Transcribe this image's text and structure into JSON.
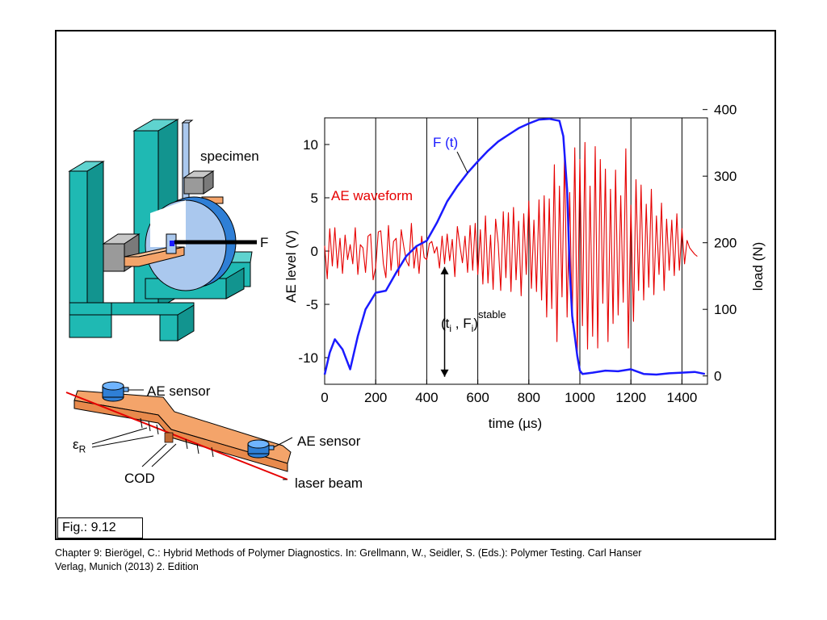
{
  "figure_label": "Fig.: 9.12",
  "caption_line1": "Chapter 9: Bierögel, C.: Hybrid Methods of Polymer Diagnostics. In: Grellmann, W., Seidler, S. (Eds.): Polymer Testing. Carl Hanser",
  "caption_line2": "Verlag, Munich (2013) 2. Edition",
  "rig": {
    "specimen": "specimen",
    "force": "F"
  },
  "beam": {
    "ae_sensor_left": "AE sensor",
    "ae_sensor_right": "AE sensor",
    "strain": "ε",
    "strain_sub": "R",
    "cod": "COD",
    "laser": "laser beam"
  },
  "chart_data": {
    "type": "line",
    "xlabel": "time (µs)",
    "ylabel": "AE level (V)",
    "y2label": "load (N)",
    "xlim": [
      0,
      1500
    ],
    "ylim": [
      -12.5,
      12.5
    ],
    "y2lim": [
      -12.5,
      387.5
    ],
    "xticks": [
      "0",
      "200",
      "400",
      "600",
      "800",
      "1000",
      "1200",
      "1400"
    ],
    "yticks": [
      "-10",
      "-5",
      "0",
      "5",
      "10"
    ],
    "y2ticks": [
      "0",
      "100",
      "200",
      "300",
      "400"
    ],
    "vertical_gridlines": [
      200,
      400,
      600,
      800,
      1000,
      1200,
      1400
    ],
    "series": [
      {
        "name": "F (t)",
        "axis": "right",
        "color": "#1a1aff",
        "x": [
          0,
          20,
          40,
          70,
          100,
          130,
          160,
          200,
          240,
          280,
          320,
          360,
          400,
          440,
          480,
          520,
          560,
          600,
          640,
          680,
          720,
          760,
          800,
          840,
          880,
          920,
          935,
          950,
          960,
          970,
          980,
          990,
          1000,
          1010,
          1050,
          1100,
          1150,
          1200,
          1250,
          1300,
          1350,
          1400,
          1450,
          1490
        ],
        "values": [
          2,
          35,
          55,
          40,
          10,
          60,
          100,
          125,
          128,
          155,
          180,
          195,
          203,
          230,
          262,
          285,
          305,
          322,
          338,
          352,
          362,
          372,
          379,
          385,
          386,
          383,
          360,
          280,
          160,
          90,
          60,
          30,
          8,
          3,
          5,
          8,
          7,
          10,
          3,
          2,
          4,
          5,
          6,
          3
        ]
      },
      {
        "name": "AE waveform",
        "axis": "left",
        "color": "#e60000",
        "x": [
          0,
          10,
          20,
          30,
          40,
          50,
          60,
          70,
          80,
          90,
          100,
          110,
          120,
          130,
          140,
          150,
          160,
          170,
          180,
          190,
          200,
          210,
          220,
          230,
          240,
          250,
          260,
          270,
          280,
          290,
          300,
          310,
          320,
          330,
          340,
          350,
          360,
          370,
          380,
          390,
          400,
          410,
          420,
          430,
          440,
          450,
          460,
          470,
          480,
          490,
          500,
          510,
          520,
          530,
          540,
          550,
          560,
          570,
          580,
          590,
          600,
          610,
          620,
          630,
          640,
          650,
          660,
          670,
          680,
          690,
          700,
          710,
          720,
          730,
          740,
          750,
          760,
          770,
          780,
          790,
          800,
          810,
          820,
          830,
          840,
          850,
          860,
          870,
          880,
          890,
          900,
          910,
          920,
          930,
          940,
          950,
          960,
          970,
          980,
          990,
          1000,
          1010,
          1020,
          1030,
          1040,
          1050,
          1060,
          1070,
          1080,
          1090,
          1100,
          1110,
          1120,
          1130,
          1140,
          1150,
          1160,
          1170,
          1180,
          1190,
          1200,
          1210,
          1220,
          1230,
          1240,
          1250,
          1260,
          1270,
          1280,
          1290,
          1300,
          1310,
          1320,
          1330,
          1340,
          1350,
          1360,
          1370,
          1380,
          1390,
          1400,
          1410,
          1420,
          1430,
          1440,
          1450,
          1460
        ],
        "values": [
          0.5,
          -2.6,
          2.1,
          -1.4,
          2.2,
          -1.6,
          1.2,
          -2.1,
          1.5,
          -0.8,
          0.6,
          -1.2,
          2.2,
          -2.2,
          0.6,
          0.3,
          -2.0,
          1.4,
          1.6,
          -2.7,
          -1.5,
          1.8,
          1.9,
          -1.2,
          -2.5,
          2.4,
          -1.8,
          0.9,
          1.2,
          -2.3,
          2.0,
          0.4,
          -0.9,
          -1.4,
          2.6,
          -1.6,
          0.5,
          -2.1,
          1.4,
          -0.6,
          -0.8,
          0.7,
          0.9,
          -0.2,
          0.4,
          -1.6,
          1.4,
          -1.2,
          1.6,
          -0.9,
          1.1,
          -2.4,
          2.3,
          0.5,
          -1.1,
          1.4,
          -2.0,
          2.4,
          -1.8,
          2.6,
          -2.2,
          2.0,
          -3.1,
          3.3,
          -3.0,
          1.5,
          -3.6,
          3.0,
          0.7,
          -3.7,
          3.7,
          -2.5,
          3.6,
          -3.8,
          4.1,
          -2.7,
          2.8,
          -4.2,
          3.5,
          -2.2,
          4.7,
          -3.5,
          2.9,
          -3.8,
          4.8,
          -4.6,
          5.2,
          -6.2,
          4.9,
          -5.4,
          8.1,
          -8.5,
          6.1,
          -4.3,
          9.2,
          -6.2,
          5.5,
          -6.7,
          9.7,
          -9.5,
          8.6,
          -7.0,
          10.2,
          -9.2,
          6.1,
          -8.0,
          9.8,
          -9.1,
          8.6,
          -4.9,
          7.7,
          -8.5,
          5.8,
          -6.8,
          7.6,
          -6.0,
          5.2,
          -4.8,
          9.6,
          -9.1,
          4.3,
          -6.6,
          6.7,
          -3.7,
          6.2,
          -4.6,
          4.4,
          -3.4,
          5.8,
          -4.1,
          3.3,
          -2.2,
          4.5,
          -3.7,
          3.0,
          -1.8,
          2.9,
          -2.3,
          3.5,
          -1.8,
          2.1,
          -1.2,
          1.0,
          0.3,
          0.0,
          -0.3,
          -0.5
        ]
      }
    ],
    "annotations": {
      "stable_point": "(t",
      "stable_i1": "i",
      "stable_sep": " , F",
      "stable_i2": "i",
      "stable_sup": "stable",
      "stable_close": ")"
    }
  }
}
